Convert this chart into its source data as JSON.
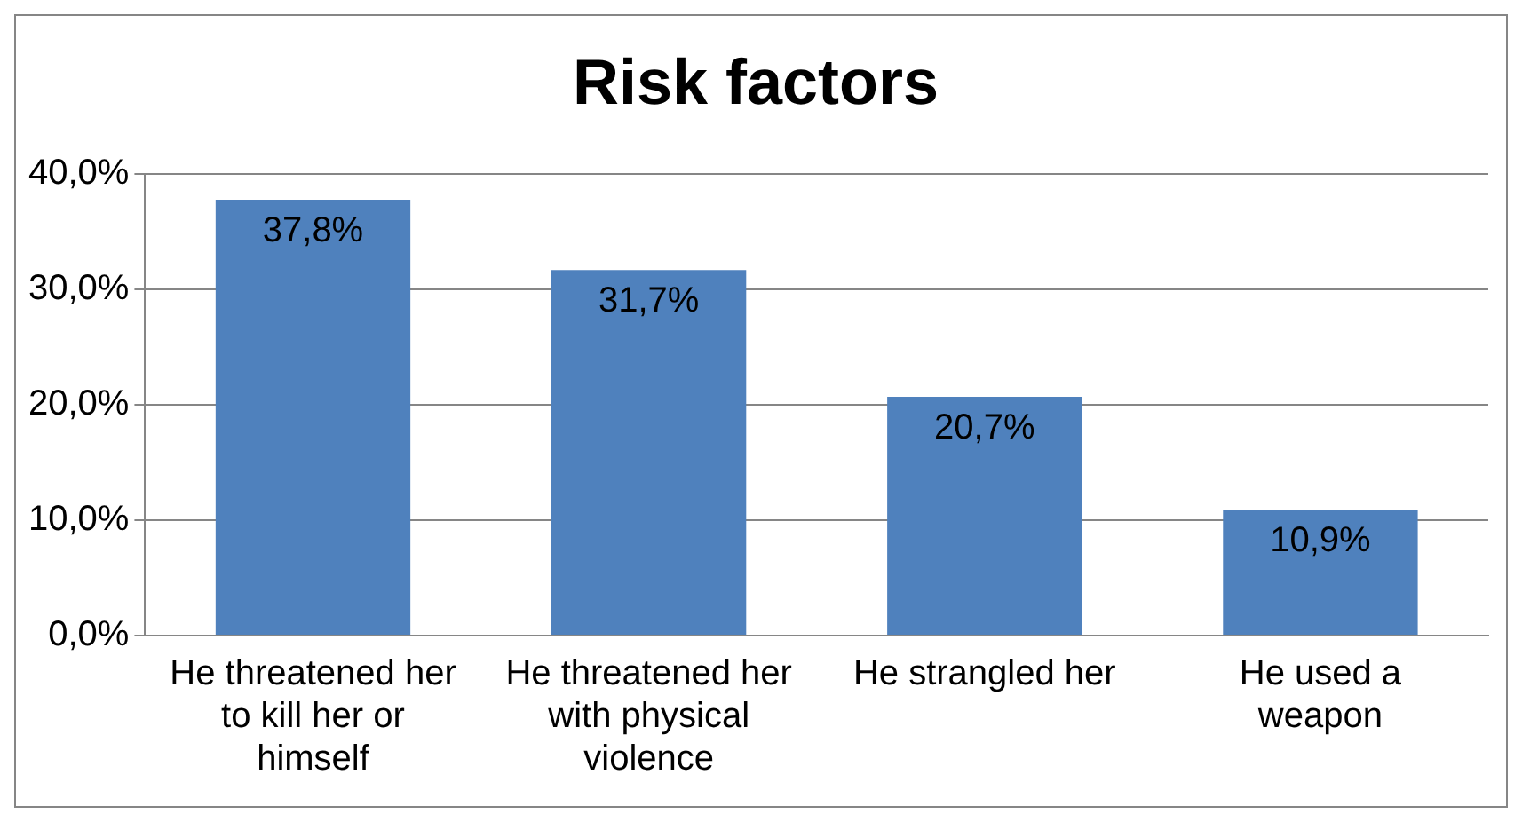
{
  "chart_data": {
    "type": "bar",
    "title": "Risk factors",
    "categories": [
      "He threatened her to kill her or himself",
      "He threatened her with physical violence",
      "He strangled her",
      "He used a weapon"
    ],
    "values": [
      37.8,
      31.7,
      20.7,
      10.9
    ],
    "value_labels": [
      "37,8%",
      "31,7%",
      "20,7%",
      "10,9%"
    ],
    "color": "#4f81bd",
    "ylim": [
      0,
      40
    ],
    "yticks": [
      {
        "value": 0,
        "label": "0,0%"
      },
      {
        "value": 10,
        "label": "10,0%"
      },
      {
        "value": 20,
        "label": "20,0%"
      },
      {
        "value": 30,
        "label": "30,0%"
      },
      {
        "value": 40,
        "label": "40,0%"
      }
    ],
    "grid": "y",
    "legend": false
  }
}
